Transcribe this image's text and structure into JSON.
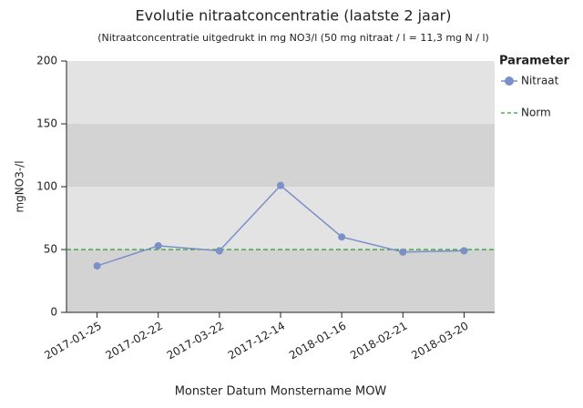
{
  "chart_data": {
    "type": "line",
    "title": "Evolutie nitraatconcentratie (laatste 2 jaar)",
    "subtitle": "(Nitraatconcentratie uitgedrukt in mg NO3/l (50 mg nitraat / l = 11,3 mg N / l)",
    "x_label": "Monster Datum Monstername MOW",
    "y_label": "mgNO3-/l",
    "legend_title": "Parameter",
    "categories": [
      "2017-01-25",
      "2017-02-22",
      "2017-03-22",
      "2017-12-14",
      "2018-01-16",
      "2018-02-21",
      "2018-03-20"
    ],
    "series": [
      {
        "name": "Nitraat",
        "color": "#7b8fc9",
        "values": [
          37,
          53,
          49,
          101,
          60,
          48,
          49
        ]
      }
    ],
    "reference_line": {
      "name": "Norm",
      "value": 50,
      "color": "#2ca02c"
    },
    "ylim": [
      0,
      200
    ],
    "yticks": [
      0,
      50,
      100,
      150,
      200
    ]
  }
}
